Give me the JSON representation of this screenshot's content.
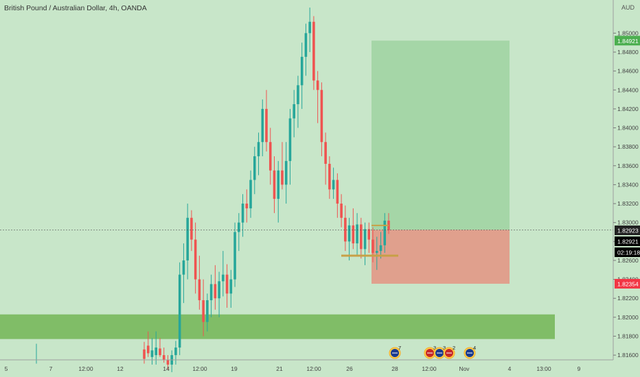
{
  "header": {
    "title": "British Pound / Australian Dollar, 4h, OANDA",
    "currency": "AUD"
  },
  "price_tags": {
    "target": {
      "value": "1.84921",
      "color": "#4caf50"
    },
    "last_close": {
      "value": "1.82923",
      "color": "#222222"
    },
    "current": {
      "value": "1.82921",
      "color": "#000000"
    },
    "countdown": {
      "value": "02:19:18",
      "color": "#000000"
    },
    "stop": {
      "value": "1.82354",
      "color": "#f23645"
    }
  },
  "colors": {
    "background": "#c8e6c9",
    "bull": "#26a69a",
    "bear": "#ef5350",
    "zone": "#80bd67",
    "profit": "#a5d6a7",
    "loss": "#e0a08d",
    "level_line": "#c8a046",
    "axis_text": "#444444"
  },
  "events": [
    {
      "icon": "au-flag-icon",
      "badge": "7"
    },
    {
      "icon": "gb-flag-icon",
      "badge": "3"
    },
    {
      "icon": "au-flag-icon",
      "badge": "3"
    },
    {
      "icon": "gb-flag-icon",
      "badge": "2"
    },
    {
      "icon": "au-flag-icon",
      "badge": "4"
    }
  ],
  "chart_data": {
    "type": "candlestick",
    "title": "British Pound / Australian Dollar, 4h, OANDA",
    "ylim": [
      1.8155,
      1.8535
    ],
    "grid": false,
    "y_ticks": [
      "1.85000",
      "1.84800",
      "1.84600",
      "1.84400",
      "1.84200",
      "1.84000",
      "1.83800",
      "1.83600",
      "1.83400",
      "1.83200",
      "1.83000",
      "1.82800",
      "1.82600",
      "1.82400",
      "1.82200",
      "1.82000",
      "1.81800",
      "1.81600"
    ],
    "x_ticks": [
      "5",
      "7",
      "12:00",
      "12",
      "14",
      "12:00",
      "19",
      "21",
      "12:00",
      "26",
      "28",
      "12:00",
      "Nov",
      "4",
      "13:00",
      "9"
    ],
    "demand_zone": {
      "low": 1.8177,
      "high": 1.8203
    },
    "position": {
      "entry": 1.82923,
      "target": 1.84921,
      "stop": 1.82354
    },
    "support_level": 1.8265,
    "candles": [
      {
        "o": 1.8166,
        "h": 1.8174,
        "l": 1.8151,
        "c": 1.8156
      },
      {
        "o": 1.817,
        "h": 1.8185,
        "l": 1.8158,
        "c": 1.8162
      },
      {
        "o": 1.8158,
        "h": 1.8178,
        "l": 1.815,
        "c": 1.8165
      },
      {
        "o": 1.816,
        "h": 1.8185,
        "l": 1.815,
        "c": 1.8168
      },
      {
        "o": 1.8167,
        "h": 1.8178,
        "l": 1.8158,
        "c": 1.816
      },
      {
        "o": 1.816,
        "h": 1.8168,
        "l": 1.8152,
        "c": 1.8155
      },
      {
        "o": 1.8155,
        "h": 1.816,
        "l": 1.8145,
        "c": 1.815
      },
      {
        "o": 1.815,
        "h": 1.8165,
        "l": 1.8142,
        "c": 1.816
      },
      {
        "o": 1.816,
        "h": 1.8175,
        "l": 1.815,
        "c": 1.8168
      },
      {
        "o": 1.8168,
        "h": 1.8258,
        "l": 1.816,
        "c": 1.8245
      },
      {
        "o": 1.8245,
        "h": 1.8278,
        "l": 1.8215,
        "c": 1.826
      },
      {
        "o": 1.826,
        "h": 1.832,
        "l": 1.824,
        "c": 1.8305
      },
      {
        "o": 1.8305,
        "h": 1.8313,
        "l": 1.827,
        "c": 1.8282
      },
      {
        "o": 1.8282,
        "h": 1.83,
        "l": 1.8225,
        "c": 1.824
      },
      {
        "o": 1.824,
        "h": 1.8265,
        "l": 1.8208,
        "c": 1.8218
      },
      {
        "o": 1.8218,
        "h": 1.824,
        "l": 1.818,
        "c": 1.8195
      },
      {
        "o": 1.8195,
        "h": 1.8225,
        "l": 1.8185,
        "c": 1.8218
      },
      {
        "o": 1.8218,
        "h": 1.8245,
        "l": 1.82,
        "c": 1.8235
      },
      {
        "o": 1.8235,
        "h": 1.8255,
        "l": 1.8208,
        "c": 1.822
      },
      {
        "o": 1.822,
        "h": 1.8248,
        "l": 1.82,
        "c": 1.8238
      },
      {
        "o": 1.8238,
        "h": 1.827,
        "l": 1.8222,
        "c": 1.8245
      },
      {
        "o": 1.8245,
        "h": 1.8256,
        "l": 1.821,
        "c": 1.8225
      },
      {
        "o": 1.8225,
        "h": 1.825,
        "l": 1.821,
        "c": 1.824
      },
      {
        "o": 1.824,
        "h": 1.83,
        "l": 1.8232,
        "c": 1.829
      },
      {
        "o": 1.829,
        "h": 1.831,
        "l": 1.827,
        "c": 1.83
      },
      {
        "o": 1.83,
        "h": 1.833,
        "l": 1.8285,
        "c": 1.832
      },
      {
        "o": 1.832,
        "h": 1.8335,
        "l": 1.83,
        "c": 1.8315
      },
      {
        "o": 1.8315,
        "h": 1.8355,
        "l": 1.8305,
        "c": 1.8345
      },
      {
        "o": 1.8345,
        "h": 1.838,
        "l": 1.833,
        "c": 1.837
      },
      {
        "o": 1.837,
        "h": 1.8395,
        "l": 1.835,
        "c": 1.8385
      },
      {
        "o": 1.8385,
        "h": 1.843,
        "l": 1.837,
        "c": 1.842
      },
      {
        "o": 1.842,
        "h": 1.844,
        "l": 1.8375,
        "c": 1.8385
      },
      {
        "o": 1.8385,
        "h": 1.84,
        "l": 1.834,
        "c": 1.8355
      },
      {
        "o": 1.8355,
        "h": 1.837,
        "l": 1.831,
        "c": 1.8325
      },
      {
        "o": 1.8325,
        "h": 1.8365,
        "l": 1.83,
        "c": 1.8355
      },
      {
        "o": 1.8355,
        "h": 1.8385,
        "l": 1.8335,
        "c": 1.834
      },
      {
        "o": 1.834,
        "h": 1.8385,
        "l": 1.832,
        "c": 1.8365
      },
      {
        "o": 1.8365,
        "h": 1.842,
        "l": 1.834,
        "c": 1.841
      },
      {
        "o": 1.841,
        "h": 1.844,
        "l": 1.839,
        "c": 1.8425
      },
      {
        "o": 1.8425,
        "h": 1.8455,
        "l": 1.84,
        "c": 1.8445
      },
      {
        "o": 1.8445,
        "h": 1.849,
        "l": 1.842,
        "c": 1.8475
      },
      {
        "o": 1.8475,
        "h": 1.851,
        "l": 1.8455,
        "c": 1.85
      },
      {
        "o": 1.85,
        "h": 1.8527,
        "l": 1.848,
        "c": 1.8512
      },
      {
        "o": 1.8512,
        "h": 1.8518,
        "l": 1.844,
        "c": 1.845
      },
      {
        "o": 1.845,
        "h": 1.846,
        "l": 1.8405,
        "c": 1.844
      },
      {
        "o": 1.844,
        "h": 1.8448,
        "l": 1.837,
        "c": 1.8385
      },
      {
        "o": 1.8385,
        "h": 1.8395,
        "l": 1.834,
        "c": 1.8362
      },
      {
        "o": 1.8362,
        "h": 1.837,
        "l": 1.8325,
        "c": 1.8335
      },
      {
        "o": 1.8335,
        "h": 1.8358,
        "l": 1.8325,
        "c": 1.8345
      },
      {
        "o": 1.8345,
        "h": 1.8352,
        "l": 1.8305,
        "c": 1.832
      },
      {
        "o": 1.832,
        "h": 1.833,
        "l": 1.8295,
        "c": 1.8305
      },
      {
        "o": 1.8305,
        "h": 1.8318,
        "l": 1.827,
        "c": 1.828
      },
      {
        "o": 1.828,
        "h": 1.8305,
        "l": 1.826,
        "c": 1.8297
      },
      {
        "o": 1.8297,
        "h": 1.8315,
        "l": 1.8272,
        "c": 1.8278
      },
      {
        "o": 1.8278,
        "h": 1.831,
        "l": 1.8265,
        "c": 1.8298
      },
      {
        "o": 1.8298,
        "h": 1.8305,
        "l": 1.8262,
        "c": 1.8272
      },
      {
        "o": 1.8272,
        "h": 1.83,
        "l": 1.8255,
        "c": 1.8293
      },
      {
        "o": 1.8293,
        "h": 1.83,
        "l": 1.8268,
        "c": 1.8282
      },
      {
        "o": 1.8282,
        "h": 1.8295,
        "l": 1.8258,
        "c": 1.8268
      },
      {
        "o": 1.8268,
        "h": 1.8285,
        "l": 1.825,
        "c": 1.827
      },
      {
        "o": 1.827,
        "h": 1.829,
        "l": 1.8262,
        "c": 1.8276
      },
      {
        "o": 1.8276,
        "h": 1.831,
        "l": 1.8268,
        "c": 1.8302
      },
      {
        "o": 1.8302,
        "h": 1.831,
        "l": 1.8288,
        "c": 1.8292
      }
    ]
  }
}
